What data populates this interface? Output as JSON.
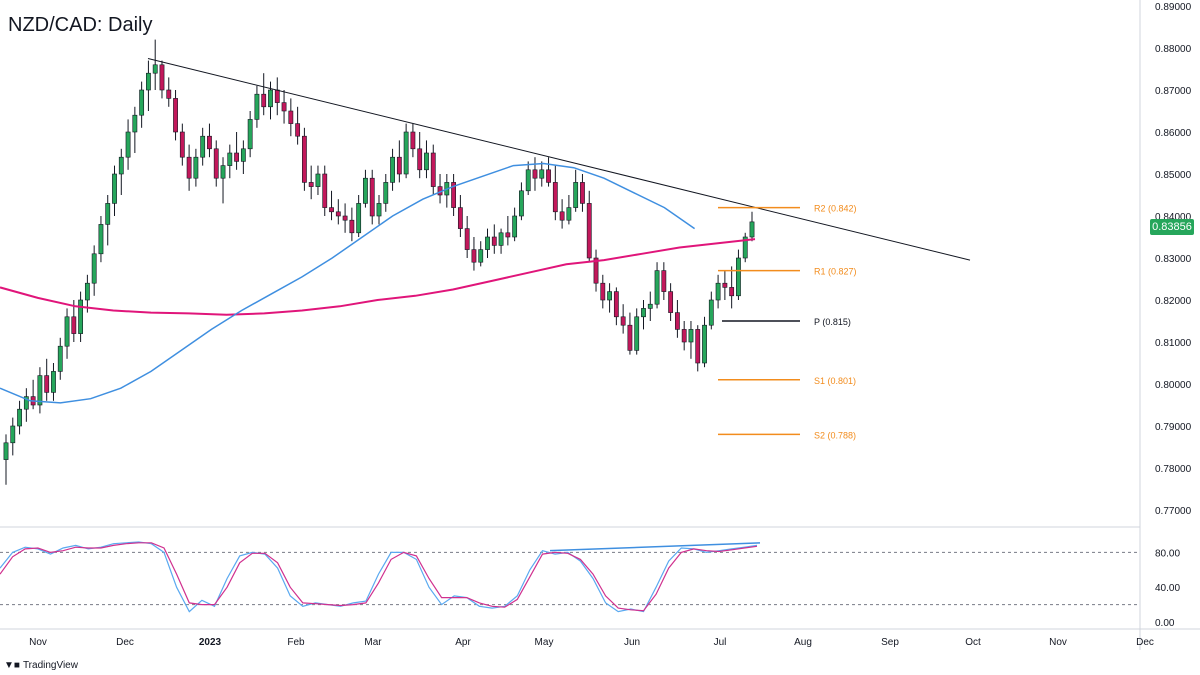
{
  "header": {
    "title": "NZD/CAD: Daily"
  },
  "current_price": "0.83856",
  "brand": {
    "name": "TradingView",
    "icon": "tradingview-logo-icon"
  },
  "colors": {
    "up": "#26a65b",
    "down": "#c2185b",
    "wick": "#131722",
    "ma_fast": "#3f8fe0",
    "ma_slow": "#e0157a",
    "pivot_sr": "#f28c1d",
    "pivot_p": "#131722",
    "trendline": "#131722",
    "stoch_k": "#5aa9f0",
    "stoch_d": "#d0318f"
  },
  "chart_data": [
    {
      "type": "candlestick",
      "title": "NZD/CAD: Daily",
      "ylim": [
        0.765,
        0.89
      ],
      "y_ticks": [
        "0.89000",
        "0.88000",
        "0.87000",
        "0.86000",
        "0.85000",
        "0.84000",
        "0.83000",
        "0.82000",
        "0.81000",
        "0.80000",
        "0.79000",
        "0.78000",
        "0.77000"
      ],
      "x_ticks": [
        "Nov",
        "Dec",
        "2023",
        "Feb",
        "Mar",
        "Apr",
        "May",
        "Jun",
        "Jul",
        "Aug",
        "Sep",
        "Oct",
        "Nov",
        "Dec"
      ],
      "current_price": 0.83856,
      "series": [
        {
          "kind": "ohlc",
          "data": [
            [
              0.782,
              0.788,
              0.776,
              0.786
            ],
            [
              0.786,
              0.792,
              0.783,
              0.79
            ],
            [
              0.79,
              0.796,
              0.788,
              0.794
            ],
            [
              0.794,
              0.799,
              0.791,
              0.797
            ],
            [
              0.797,
              0.801,
              0.794,
              0.795
            ],
            [
              0.795,
              0.804,
              0.793,
              0.802
            ],
            [
              0.802,
              0.806,
              0.796,
              0.798
            ],
            [
              0.798,
              0.805,
              0.796,
              0.803
            ],
            [
              0.803,
              0.811,
              0.801,
              0.809
            ],
            [
              0.809,
              0.818,
              0.806,
              0.816
            ],
            [
              0.816,
              0.82,
              0.81,
              0.812
            ],
            [
              0.812,
              0.822,
              0.81,
              0.82
            ],
            [
              0.82,
              0.826,
              0.817,
              0.824
            ],
            [
              0.824,
              0.833,
              0.821,
              0.831
            ],
            [
              0.831,
              0.84,
              0.829,
              0.838
            ],
            [
              0.838,
              0.845,
              0.833,
              0.843
            ],
            [
              0.843,
              0.852,
              0.84,
              0.85
            ],
            [
              0.85,
              0.856,
              0.845,
              0.854
            ],
            [
              0.854,
              0.863,
              0.851,
              0.86
            ],
            [
              0.86,
              0.866,
              0.855,
              0.864
            ],
            [
              0.864,
              0.872,
              0.861,
              0.87
            ],
            [
              0.87,
              0.877,
              0.865,
              0.874
            ],
            [
              0.874,
              0.882,
              0.87,
              0.876
            ],
            [
              0.876,
              0.877,
              0.868,
              0.87
            ],
            [
              0.87,
              0.873,
              0.866,
              0.868
            ],
            [
              0.868,
              0.87,
              0.858,
              0.86
            ],
            [
              0.86,
              0.862,
              0.852,
              0.854
            ],
            [
              0.854,
              0.857,
              0.846,
              0.849
            ],
            [
              0.849,
              0.856,
              0.847,
              0.854
            ],
            [
              0.854,
              0.861,
              0.852,
              0.859
            ],
            [
              0.859,
              0.862,
              0.854,
              0.856
            ],
            [
              0.856,
              0.858,
              0.847,
              0.849
            ],
            [
              0.849,
              0.854,
              0.843,
              0.852
            ],
            [
              0.852,
              0.857,
              0.849,
              0.855
            ],
            [
              0.855,
              0.86,
              0.851,
              0.853
            ],
            [
              0.853,
              0.858,
              0.85,
              0.856
            ],
            [
              0.856,
              0.865,
              0.854,
              0.863
            ],
            [
              0.863,
              0.871,
              0.861,
              0.869
            ],
            [
              0.869,
              0.874,
              0.864,
              0.866
            ],
            [
              0.866,
              0.872,
              0.863,
              0.87
            ],
            [
              0.87,
              0.873,
              0.864,
              0.867
            ],
            [
              0.867,
              0.87,
              0.862,
              0.865
            ],
            [
              0.865,
              0.868,
              0.859,
              0.862
            ],
            [
              0.862,
              0.866,
              0.857,
              0.859
            ],
            [
              0.859,
              0.861,
              0.846,
              0.848
            ],
            [
              0.848,
              0.852,
              0.844,
              0.847
            ],
            [
              0.847,
              0.852,
              0.845,
              0.85
            ],
            [
              0.85,
              0.852,
              0.84,
              0.842
            ],
            [
              0.842,
              0.846,
              0.839,
              0.841
            ],
            [
              0.841,
              0.844,
              0.838,
              0.84
            ],
            [
              0.84,
              0.843,
              0.836,
              0.839
            ],
            [
              0.839,
              0.842,
              0.834,
              0.836
            ],
            [
              0.836,
              0.845,
              0.835,
              0.843
            ],
            [
              0.843,
              0.851,
              0.842,
              0.849
            ],
            [
              0.849,
              0.851,
              0.838,
              0.84
            ],
            [
              0.84,
              0.845,
              0.838,
              0.843
            ],
            [
              0.843,
              0.85,
              0.841,
              0.848
            ],
            [
              0.848,
              0.856,
              0.846,
              0.854
            ],
            [
              0.854,
              0.858,
              0.848,
              0.85
            ],
            [
              0.85,
              0.862,
              0.849,
              0.86
            ],
            [
              0.86,
              0.862,
              0.854,
              0.856
            ],
            [
              0.856,
              0.86,
              0.849,
              0.851
            ],
            [
              0.851,
              0.858,
              0.849,
              0.855
            ],
            [
              0.855,
              0.857,
              0.845,
              0.847
            ],
            [
              0.847,
              0.85,
              0.843,
              0.845
            ],
            [
              0.845,
              0.85,
              0.842,
              0.848
            ],
            [
              0.848,
              0.85,
              0.84,
              0.842
            ],
            [
              0.842,
              0.845,
              0.835,
              0.837
            ],
            [
              0.837,
              0.84,
              0.83,
              0.832
            ],
            [
              0.832,
              0.835,
              0.827,
              0.829
            ],
            [
              0.829,
              0.834,
              0.828,
              0.832
            ],
            [
              0.832,
              0.837,
              0.83,
              0.835
            ],
            [
              0.835,
              0.838,
              0.831,
              0.833
            ],
            [
              0.833,
              0.837,
              0.831,
              0.836
            ],
            [
              0.836,
              0.84,
              0.833,
              0.835
            ],
            [
              0.835,
              0.842,
              0.834,
              0.84
            ],
            [
              0.84,
              0.848,
              0.839,
              0.846
            ],
            [
              0.846,
              0.853,
              0.845,
              0.851
            ],
            [
              0.851,
              0.854,
              0.846,
              0.849
            ],
            [
              0.849,
              0.853,
              0.847,
              0.851
            ],
            [
              0.851,
              0.854,
              0.847,
              0.848
            ],
            [
              0.848,
              0.852,
              0.839,
              0.841
            ],
            [
              0.841,
              0.844,
              0.837,
              0.839
            ],
            [
              0.839,
              0.845,
              0.838,
              0.842
            ],
            [
              0.842,
              0.851,
              0.841,
              0.848
            ],
            [
              0.848,
              0.85,
              0.841,
              0.843
            ],
            [
              0.843,
              0.846,
              0.829,
              0.83
            ],
            [
              0.83,
              0.832,
              0.822,
              0.824
            ],
            [
              0.824,
              0.826,
              0.818,
              0.82
            ],
            [
              0.82,
              0.824,
              0.817,
              0.822
            ],
            [
              0.822,
              0.823,
              0.814,
              0.816
            ],
            [
              0.816,
              0.819,
              0.812,
              0.814
            ],
            [
              0.814,
              0.817,
              0.807,
              0.808
            ],
            [
              0.808,
              0.818,
              0.807,
              0.816
            ],
            [
              0.816,
              0.82,
              0.813,
              0.818
            ],
            [
              0.818,
              0.822,
              0.815,
              0.819
            ],
            [
              0.819,
              0.829,
              0.818,
              0.827
            ],
            [
              0.827,
              0.829,
              0.82,
              0.822
            ],
            [
              0.822,
              0.824,
              0.815,
              0.817
            ],
            [
              0.817,
              0.82,
              0.811,
              0.813
            ],
            [
              0.813,
              0.815,
              0.808,
              0.81
            ],
            [
              0.81,
              0.815,
              0.806,
              0.813
            ],
            [
              0.813,
              0.814,
              0.803,
              0.805
            ],
            [
              0.805,
              0.816,
              0.804,
              0.814
            ],
            [
              0.814,
              0.822,
              0.813,
              0.82
            ],
            [
              0.82,
              0.826,
              0.818,
              0.824
            ],
            [
              0.824,
              0.827,
              0.82,
              0.823
            ],
            [
              0.823,
              0.828,
              0.818,
              0.821
            ],
            [
              0.821,
              0.832,
              0.82,
              0.83
            ],
            [
              0.83,
              0.836,
              0.829,
              0.835
            ],
            [
              0.835,
              0.841,
              0.834,
              0.8386
            ]
          ]
        },
        {
          "kind": "line",
          "name": "",
          "values_key": "ma_fast",
          "values": [
            0.799,
            0.796,
            0.7955,
            0.7965,
            0.799,
            0.803,
            0.808,
            0.813,
            0.8175,
            0.8215,
            0.8255,
            0.83,
            0.835,
            0.84,
            0.844,
            0.847,
            0.8495,
            0.852,
            0.8525,
            0.8515,
            0.849,
            0.8455,
            0.842,
            0.837
          ],
          "x_frac": [
            0.0,
            0.04,
            0.08,
            0.12,
            0.16,
            0.2,
            0.24,
            0.28,
            0.32,
            0.36,
            0.4,
            0.44,
            0.48,
            0.52,
            0.56,
            0.6,
            0.64,
            0.68,
            0.72,
            0.76,
            0.8,
            0.84,
            0.88,
            0.92
          ]
        },
        {
          "kind": "line",
          "name": "",
          "values_key": "ma_slow",
          "values": [
            0.823,
            0.8205,
            0.8185,
            0.8175,
            0.817,
            0.8168,
            0.8165,
            0.8168,
            0.8175,
            0.8185,
            0.82,
            0.821,
            0.8225,
            0.8245,
            0.8265,
            0.8285,
            0.8295,
            0.831,
            0.8325,
            0.8345
          ],
          "x_frac": [
            0.0,
            0.05,
            0.1,
            0.15,
            0.2,
            0.25,
            0.3,
            0.35,
            0.4,
            0.45,
            0.5,
            0.55,
            0.6,
            0.65,
            0.7,
            0.75,
            0.8,
            0.85,
            0.9,
            1.0
          ]
        }
      ],
      "trendline": {
        "from": [
          0.8775,
          0
        ],
        "to": [
          0.8295,
          1
        ]
      },
      "levels": [
        {
          "label": "R2 (0.842)",
          "value": 0.842,
          "color": "pivot_sr"
        },
        {
          "label": "R1 (0.827)",
          "value": 0.827,
          "color": "pivot_sr"
        },
        {
          "label": "P (0.815)",
          "value": 0.815,
          "color": "pivot_p"
        },
        {
          "label": "S1 (0.801)",
          "value": 0.801,
          "color": "pivot_sr"
        },
        {
          "label": "S2 (0.788)",
          "value": 0.788,
          "color": "pivot_sr"
        }
      ]
    },
    {
      "type": "line",
      "ylim": [
        0,
        100
      ],
      "y_ticks": [
        "80.00",
        "40.00",
        "0.00"
      ],
      "guide_levels": [
        80,
        20
      ],
      "series": [
        {
          "name": "",
          "values": [
            62,
            80,
            86,
            84,
            78,
            85,
            88,
            84,
            86,
            90,
            91,
            92,
            90,
            80,
            40,
            12,
            25,
            18,
            50,
            76,
            80,
            78,
            62,
            30,
            18,
            22,
            20,
            18,
            22,
            24,
            55,
            80,
            80,
            72,
            40,
            20,
            30,
            28,
            18,
            16,
            18,
            30,
            60,
            82,
            78,
            80,
            70,
            50,
            22,
            12,
            15,
            12,
            40,
            70,
            85,
            84,
            80,
            82,
            84,
            86,
            88
          ]
        },
        {
          "name": "",
          "values": [
            55,
            75,
            84,
            85,
            80,
            82,
            86,
            85,
            85,
            88,
            90,
            91,
            91,
            85,
            55,
            22,
            20,
            20,
            40,
            68,
            79,
            79,
            68,
            40,
            22,
            21,
            20,
            19,
            20,
            22,
            45,
            72,
            80,
            76,
            50,
            28,
            28,
            28,
            22,
            18,
            17,
            26,
            52,
            78,
            80,
            79,
            72,
            55,
            30,
            16,
            14,
            13,
            32,
            62,
            80,
            84,
            82,
            81,
            83,
            85,
            87
          ]
        }
      ],
      "divergence_line": {
        "from": [
          82,
          0.537
        ],
        "to": [
          91,
          0.885
        ]
      }
    }
  ]
}
